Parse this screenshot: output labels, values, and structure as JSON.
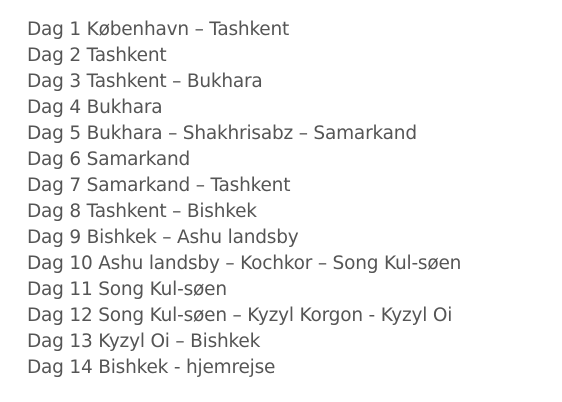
{
  "itinerary": {
    "days": [
      "Dag 1 København – Tashkent",
      "Dag 2 Tashkent",
      "Dag 3 Tashkent – Bukhara",
      "Dag 4 Bukhara",
      "Dag 5 Bukhara – Shakhrisabz – Samarkand",
      "Dag 6 Samarkand",
      "Dag 7 Samarkand – Tashkent",
      "Dag 8 Tashkent – Bishkek",
      "Dag 9 Bishkek – Ashu landsby",
      "Dag 10 Ashu landsby – Kochkor – Song Kul-søen",
      "Dag 11 Song Kul-søen",
      "Dag 12 Song Kul-søen – Kyzyl Korgon - Kyzyl Oi",
      "Dag 13 Kyzyl Oi – Bishkek",
      "Dag 14 Bishkek - hjemrejse"
    ]
  }
}
